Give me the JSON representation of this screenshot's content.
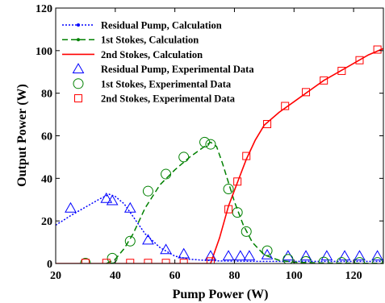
{
  "chart_data": {
    "type": "line",
    "xlabel": "Pump Power (W)",
    "ylabel": "Output Power (W)",
    "xlim": [
      20,
      130
    ],
    "ylim": [
      0,
      120
    ],
    "xticks": [
      20,
      40,
      60,
      80,
      100,
      120
    ],
    "yticks": [
      0,
      20,
      40,
      60,
      80,
      100,
      120
    ],
    "grid": false,
    "legend_position": "top-left",
    "series": [
      {
        "name": "Residual Pump, Calculation",
        "kind": "line",
        "color": "#0000ff",
        "style": "dotted-dots",
        "x": [
          20,
          25,
          30,
          35,
          38,
          40,
          43,
          46,
          50,
          55,
          60,
          65,
          70,
          75,
          80,
          90,
          100,
          110,
          120,
          130
        ],
        "y": [
          18,
          22.5,
          26.5,
          30.5,
          32.5,
          31.5,
          28,
          22,
          14,
          7.5,
          3.5,
          2,
          1.5,
          1.2,
          1.1,
          1.0,
          1.0,
          1.0,
          1.0,
          1.0
        ]
      },
      {
        "name": "1st Stokes, Calculation",
        "kind": "line",
        "color": "#008000",
        "style": "dashed-dots",
        "x": [
          37,
          40,
          43,
          46,
          50,
          55,
          60,
          65,
          70,
          72,
          74,
          76,
          78,
          80,
          83,
          86,
          90,
          95,
          100,
          110,
          120,
          130
        ],
        "y": [
          0,
          2,
          7,
          14,
          26,
          37,
          44,
          50,
          55,
          57,
          55,
          47,
          38,
          29,
          18,
          10,
          4,
          1.5,
          0.6,
          0.2,
          0.1,
          0.1
        ]
      },
      {
        "name": "2nd Stokes, Calculation",
        "kind": "line",
        "color": "#ff0000",
        "style": "solid",
        "x": [
          20,
          72,
          75,
          78,
          81,
          84,
          87,
          90,
          95,
          100,
          105,
          110,
          115,
          120,
          125,
          130
        ],
        "y": [
          0,
          0,
          12,
          27,
          38,
          49,
          58,
          65,
          71,
          76,
          81,
          86,
          90,
          94,
          98,
          101
        ]
      },
      {
        "name": "Residual Pump, Experimental Data",
        "kind": "marker",
        "marker": "triangle",
        "color": "#0000ff",
        "x": [
          25,
          37,
          39,
          45,
          51,
          57,
          63,
          72,
          78,
          82,
          85,
          91,
          98,
          104,
          111,
          117,
          122,
          128
        ],
        "y": [
          26,
          30.5,
          29.5,
          26,
          11,
          6.5,
          4.5,
          3.5,
          3.5,
          3.5,
          3.5,
          4,
          3.5,
          3.5,
          3.5,
          3.5,
          3.5,
          3.5
        ]
      },
      {
        "name": "1st Stokes, Experimental Data",
        "kind": "marker",
        "marker": "circle",
        "color": "#008000",
        "x": [
          30,
          39,
          45,
          51,
          57,
          63,
          70,
          72,
          78,
          81,
          84,
          91,
          98,
          104,
          110,
          116,
          122,
          128
        ],
        "y": [
          0.2,
          2.5,
          10.5,
          34,
          42,
          50,
          57,
          56,
          35,
          24,
          15,
          6,
          2,
          1,
          0.7,
          0.5,
          0.5,
          0.5
        ]
      },
      {
        "name": "2nd Stokes, Experimental Data",
        "kind": "marker",
        "marker": "square",
        "color": "#ff0000",
        "x": [
          30,
          37,
          45,
          51,
          57,
          63,
          72,
          78,
          81,
          84,
          91,
          97,
          104,
          110,
          116,
          122,
          128
        ],
        "y": [
          0.3,
          0.3,
          0.3,
          0.3,
          0.3,
          0.3,
          1,
          25.5,
          38.5,
          50.5,
          65.5,
          74,
          80.5,
          86,
          90.5,
          95.5,
          100.5
        ]
      }
    ]
  }
}
